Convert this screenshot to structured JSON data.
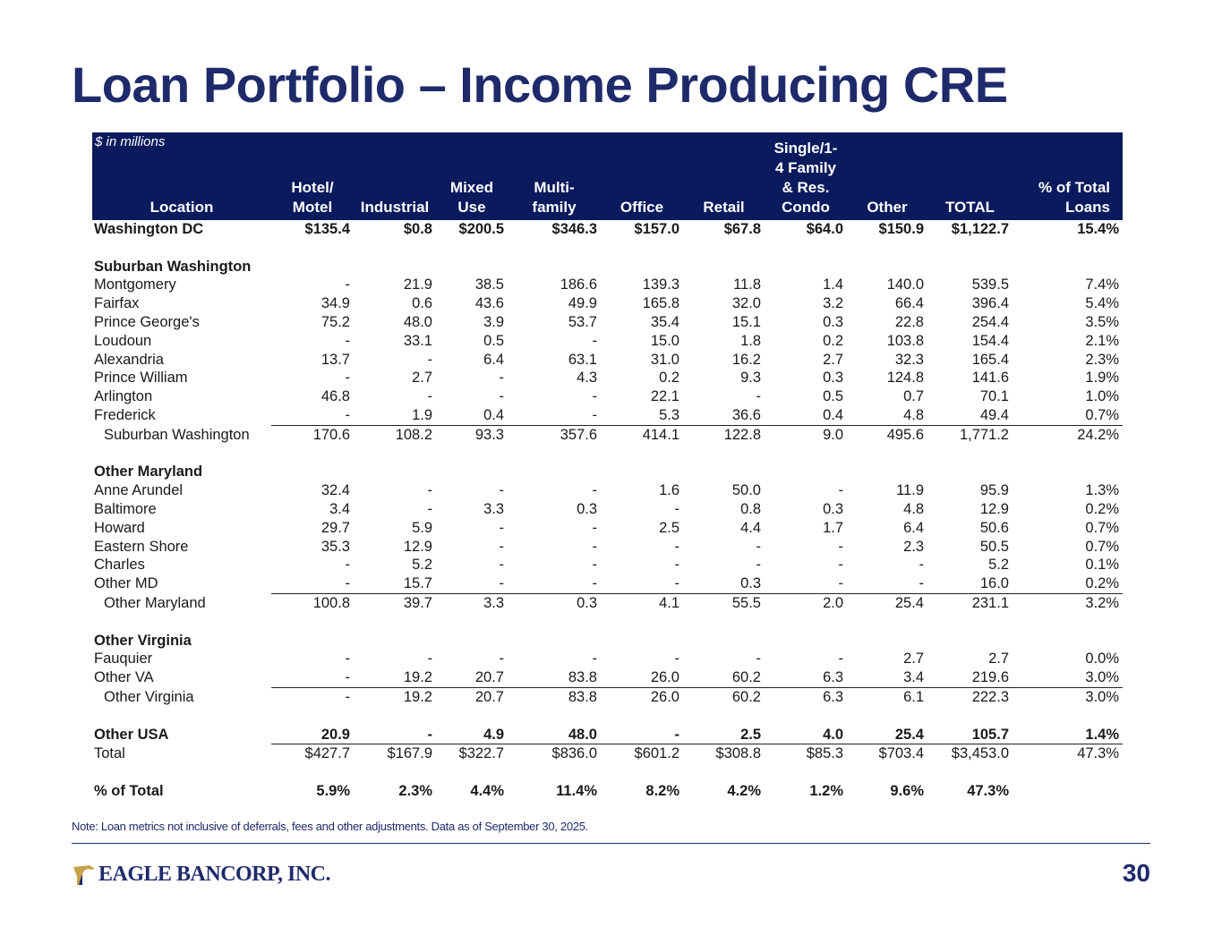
{
  "title": "Loan Portfolio – Income Producing CRE",
  "units_label": "$ in millions",
  "headers": {
    "location": "Location",
    "hotel": [
      "Hotel/",
      "Motel"
    ],
    "industrial": "Industrial",
    "mixed": [
      "Mixed",
      "Use"
    ],
    "multi": [
      "Multi-",
      "family"
    ],
    "office": "Office",
    "retail": "Retail",
    "sfr": [
      "Single/1-",
      "4 Family",
      "& Res.",
      "Condo"
    ],
    "other": "Other",
    "total": "TOTAL",
    "pct": [
      "% of Total",
      "Loans"
    ]
  },
  "rows": [
    {
      "type": "bold",
      "cells": [
        "Washington DC",
        "$135.4",
        "$0.8",
        "$200.5",
        "$346.3",
        "$157.0",
        "$67.8",
        "$64.0",
        "$150.9",
        "$1,122.7",
        "15.4%"
      ]
    },
    {
      "type": "gap"
    },
    {
      "type": "hdr",
      "cells": [
        "Suburban Washington"
      ]
    },
    {
      "type": "row",
      "cells": [
        "Montgomery",
        "-",
        "21.9",
        "38.5",
        "186.6",
        "139.3",
        "11.8",
        "1.4",
        "140.0",
        "539.5",
        "7.4%"
      ]
    },
    {
      "type": "row",
      "cells": [
        "Fairfax",
        "34.9",
        "0.6",
        "43.6",
        "49.9",
        "165.8",
        "32.0",
        "3.2",
        "66.4",
        "396.4",
        "5.4%"
      ]
    },
    {
      "type": "row",
      "cells": [
        "Prince George's",
        "75.2",
        "48.0",
        "3.9",
        "53.7",
        "35.4",
        "15.1",
        "0.3",
        "22.8",
        "254.4",
        "3.5%"
      ]
    },
    {
      "type": "row",
      "cells": [
        "Loudoun",
        "-",
        "33.1",
        "0.5",
        "-",
        "15.0",
        "1.8",
        "0.2",
        "103.8",
        "154.4",
        "2.1%"
      ]
    },
    {
      "type": "row",
      "cells": [
        "Alexandria",
        "13.7",
        "-",
        "6.4",
        "63.1",
        "31.0",
        "16.2",
        "2.7",
        "32.3",
        "165.4",
        "2.3%"
      ]
    },
    {
      "type": "row",
      "cells": [
        "Prince William",
        "-",
        "2.7",
        "-",
        "4.3",
        "0.2",
        "9.3",
        "0.3",
        "124.8",
        "141.6",
        "1.9%"
      ]
    },
    {
      "type": "row",
      "cells": [
        "Arlington",
        "46.8",
        "-",
        "-",
        "-",
        "22.1",
        "-",
        "0.5",
        "0.7",
        "70.1",
        "1.0%"
      ]
    },
    {
      "type": "row",
      "cells": [
        "Frederick",
        "-",
        "1.9",
        "0.4",
        "-",
        "5.3",
        "36.6",
        "0.4",
        "4.8",
        "49.4",
        "0.7%"
      ]
    },
    {
      "type": "sub",
      "cells": [
        "Suburban Washington",
        "170.6",
        "108.2",
        "93.3",
        "357.6",
        "414.1",
        "122.8",
        "9.0",
        "495.6",
        "1,771.2",
        "24.2%"
      ]
    },
    {
      "type": "gap"
    },
    {
      "type": "hdr",
      "cells": [
        "Other Maryland"
      ]
    },
    {
      "type": "row",
      "cells": [
        "Anne Arundel",
        "32.4",
        "-",
        "-",
        "-",
        "1.6",
        "50.0",
        "-",
        "11.9",
        "95.9",
        "1.3%"
      ]
    },
    {
      "type": "row",
      "cells": [
        "Baltimore",
        "3.4",
        "-",
        "3.3",
        "0.3",
        "-",
        "0.8",
        "0.3",
        "4.8",
        "12.9",
        "0.2%"
      ]
    },
    {
      "type": "row",
      "cells": [
        "Howard",
        "29.7",
        "5.9",
        "-",
        "-",
        "2.5",
        "4.4",
        "1.7",
        "6.4",
        "50.6",
        "0.7%"
      ]
    },
    {
      "type": "row",
      "cells": [
        "Eastern Shore",
        "35.3",
        "12.9",
        "-",
        "-",
        "-",
        "-",
        "-",
        "2.3",
        "50.5",
        "0.7%"
      ]
    },
    {
      "type": "row",
      "cells": [
        "Charles",
        "-",
        "5.2",
        "-",
        "-",
        "-",
        "-",
        "-",
        "-",
        "5.2",
        "0.1%"
      ]
    },
    {
      "type": "row",
      "cells": [
        "Other MD",
        "-",
        "15.7",
        "-",
        "-",
        "-",
        "0.3",
        "-",
        "-",
        "16.0",
        "0.2%"
      ]
    },
    {
      "type": "sub",
      "cells": [
        "Other Maryland",
        "100.8",
        "39.7",
        "3.3",
        "0.3",
        "4.1",
        "55.5",
        "2.0",
        "25.4",
        "231.1",
        "3.2%"
      ]
    },
    {
      "type": "gap"
    },
    {
      "type": "hdr",
      "cells": [
        "Other Virginia"
      ]
    },
    {
      "type": "row",
      "cells": [
        "Fauquier",
        "-",
        "-",
        "-",
        "-",
        "-",
        "-",
        "-",
        "2.7",
        "2.7",
        "0.0%"
      ]
    },
    {
      "type": "row",
      "cells": [
        "Other VA",
        "-",
        "19.2",
        "20.7",
        "83.8",
        "26.0",
        "60.2",
        "6.3",
        "3.4",
        "219.6",
        "3.0%"
      ]
    },
    {
      "type": "sub",
      "cells": [
        "Other Virginia",
        "-",
        "19.2",
        "20.7",
        "83.8",
        "26.0",
        "60.2",
        "6.3",
        "6.1",
        "222.3",
        "3.0%"
      ]
    },
    {
      "type": "gap"
    },
    {
      "type": "bold",
      "cells": [
        "Other USA",
        "20.9",
        "-",
        "4.9",
        "48.0",
        "-",
        "2.5",
        "4.0",
        "25.4",
        "105.7",
        "1.4%"
      ]
    },
    {
      "type": "totrow",
      "cells": [
        "Total",
        "$427.7",
        "$167.9",
        "$322.7",
        "$836.0",
        "$601.2",
        "$308.8",
        "$85.3",
        "$703.4",
        "$3,453.0",
        "47.3%"
      ]
    },
    {
      "type": "gap"
    },
    {
      "type": "bold",
      "cells": [
        "% of Total",
        "5.9%",
        "2.3%",
        "4.4%",
        "11.4%",
        "8.2%",
        "4.2%",
        "1.2%",
        "9.6%",
        "47.3%",
        ""
      ]
    }
  ],
  "note": "Note: Loan metrics not inclusive of deferrals, fees and other adjustments. Data as of September 30, 2025.",
  "logo_text": "EAGLE BANCORP, INC.",
  "page_number": "30"
}
